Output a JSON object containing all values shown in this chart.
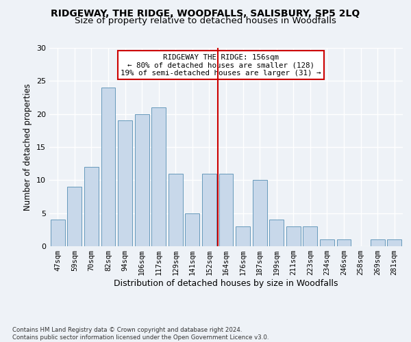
{
  "title1": "RIDGEWAY, THE RIDGE, WOODFALLS, SALISBURY, SP5 2LQ",
  "title2": "Size of property relative to detached houses in Woodfalls",
  "xlabel": "Distribution of detached houses by size in Woodfalls",
  "ylabel": "Number of detached properties",
  "footer1": "Contains HM Land Registry data © Crown copyright and database right 2024.",
  "footer2": "Contains public sector information licensed under the Open Government Licence v3.0.",
  "annotation_line1": "RIDGEWAY THE RIDGE: 156sqm",
  "annotation_line2": "← 80% of detached houses are smaller (128)",
  "annotation_line3": "19% of semi-detached houses are larger (31) →",
  "categories": [
    "47sqm",
    "59sqm",
    "70sqm",
    "82sqm",
    "94sqm",
    "106sqm",
    "117sqm",
    "129sqm",
    "141sqm",
    "152sqm",
    "164sqm",
    "176sqm",
    "187sqm",
    "199sqm",
    "211sqm",
    "223sqm",
    "234sqm",
    "246sqm",
    "258sqm",
    "269sqm",
    "281sqm"
  ],
  "values": [
    4,
    9,
    12,
    24,
    19,
    20,
    21,
    11,
    5,
    11,
    11,
    3,
    10,
    4,
    3,
    3,
    1,
    1,
    0,
    1,
    1
  ],
  "bar_color": "#c8d8ea",
  "bar_edge_color": "#6699bb",
  "reference_line_x": 9.5,
  "reference_line_color": "#cc0000",
  "ylim": [
    0,
    30
  ],
  "yticks": [
    0,
    5,
    10,
    15,
    20,
    25,
    30
  ],
  "bg_color": "#eef2f7",
  "plot_bg_color": "#eef2f7",
  "grid_color": "#ffffff",
  "title1_fontsize": 10,
  "title2_fontsize": 9.5,
  "xlabel_fontsize": 9,
  "ylabel_fontsize": 8.5
}
